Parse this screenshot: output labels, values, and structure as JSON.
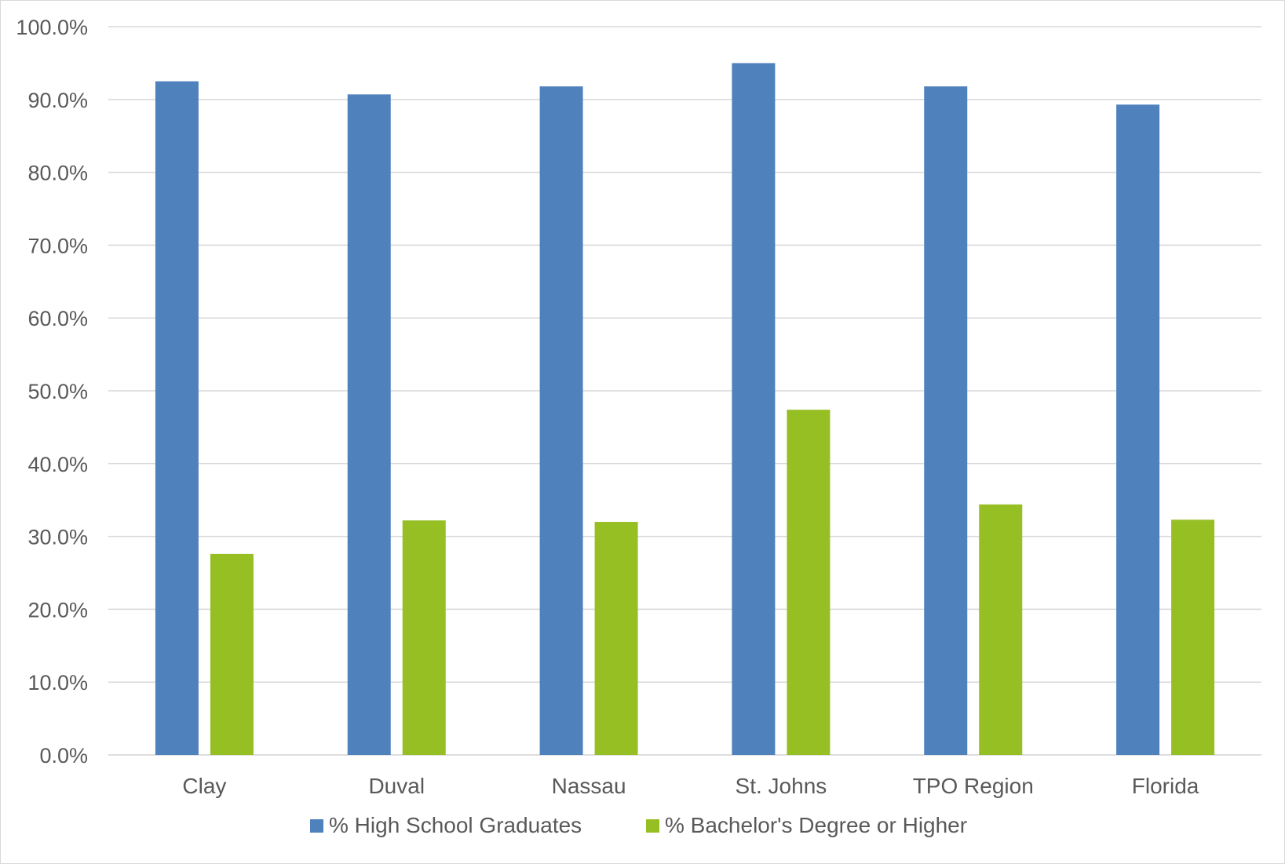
{
  "chart_data": {
    "type": "bar",
    "categories": [
      "Clay",
      "Duval",
      "Nassau",
      "St. Johns",
      "TPO Region",
      "Florida"
    ],
    "series": [
      {
        "name": "% High School Graduates",
        "color": "#4f81bd",
        "values": [
          92.5,
          90.7,
          91.8,
          95.0,
          91.8,
          89.3
        ]
      },
      {
        "name": "% Bachelor's Degree or Higher",
        "color": "#96bf24",
        "values": [
          27.6,
          32.2,
          32.0,
          47.4,
          34.4,
          32.3
        ]
      }
    ],
    "y_ticks": [
      "0.0%",
      "10.0%",
      "20.0%",
      "30.0%",
      "40.0%",
      "50.0%",
      "60.0%",
      "70.0%",
      "80.0%",
      "90.0%",
      "100.0%"
    ],
    "ylim": [
      0,
      100
    ],
    "grid": true,
    "legend_position": "bottom",
    "title": "",
    "xlabel": "",
    "ylabel": ""
  }
}
